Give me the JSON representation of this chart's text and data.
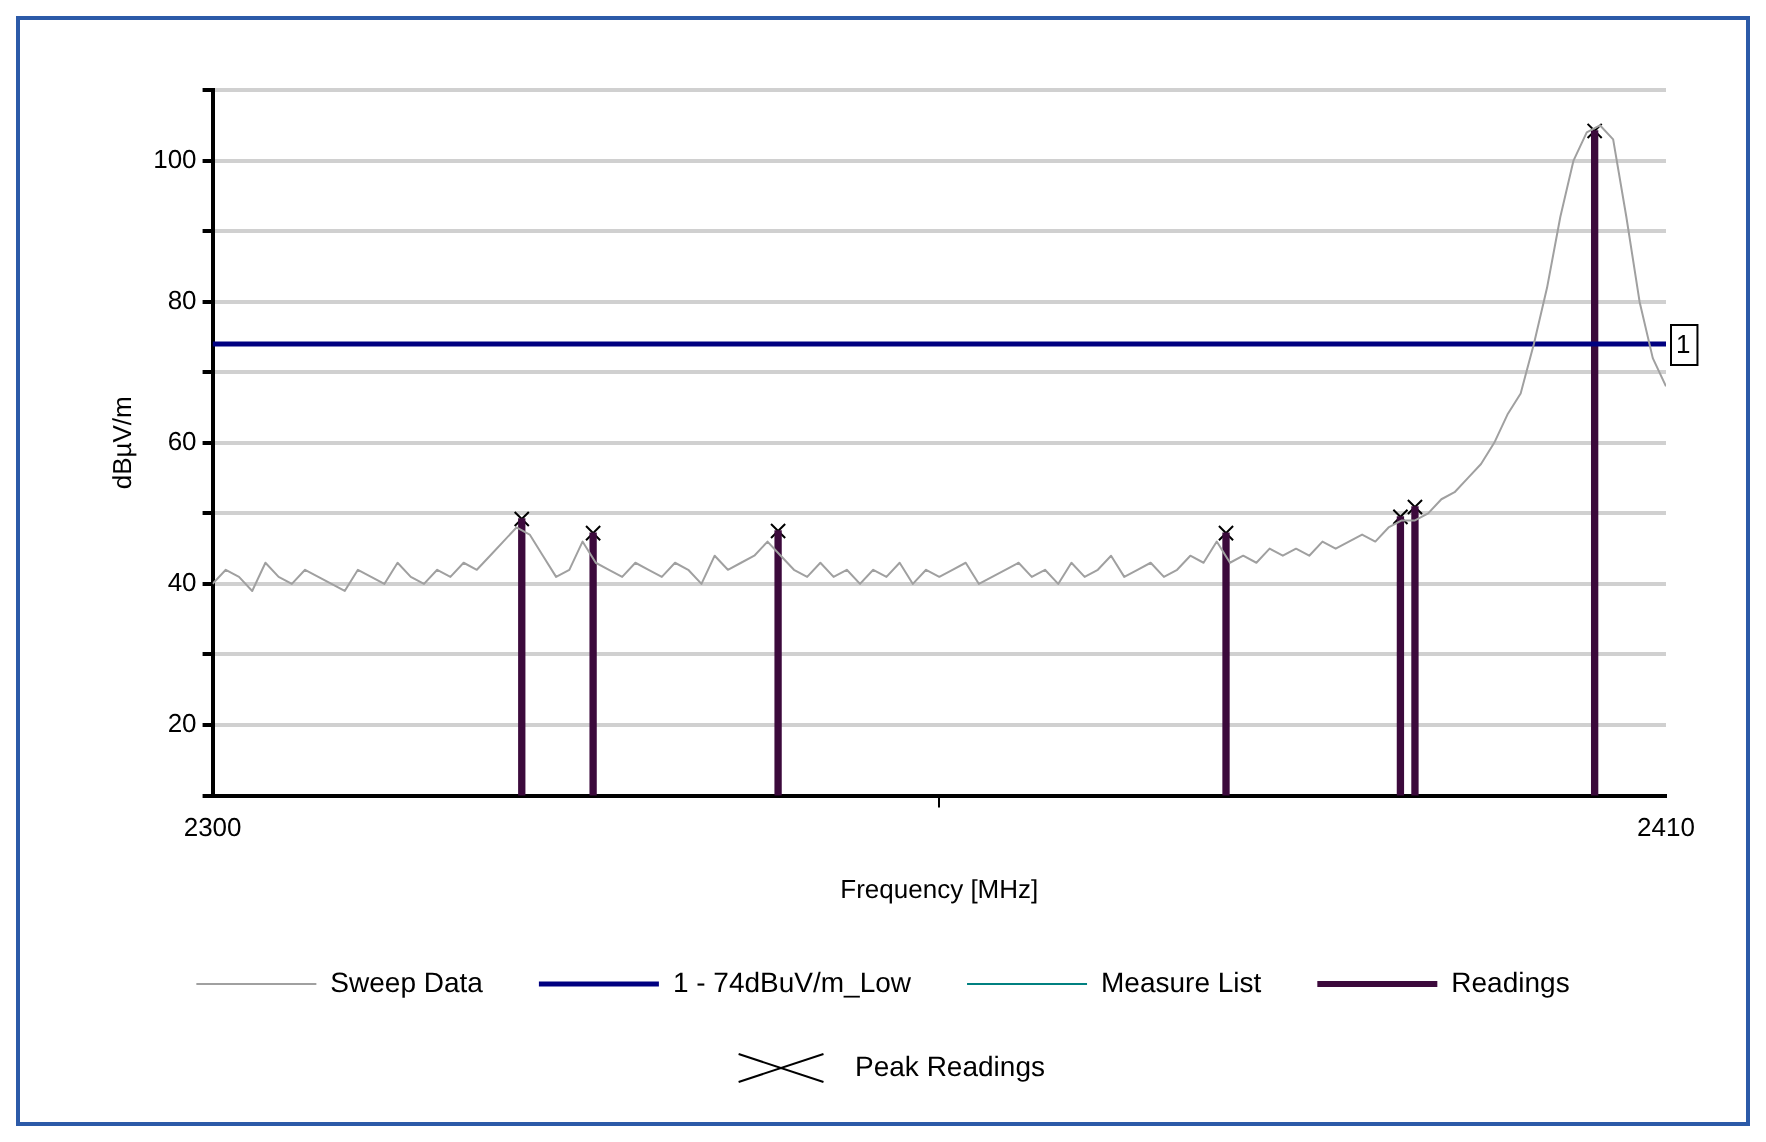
{
  "chart_data": {
    "type": "line",
    "xlabel": "Frequency [MHz]",
    "ylabel": "dBµV/m",
    "xlim": [
      2300,
      2410
    ],
    "xticks": [
      2300,
      2410
    ],
    "ylim": [
      10,
      110
    ],
    "yticks": [
      {
        "value": 10,
        "label": null
      },
      20,
      {
        "value": 30,
        "label": null
      },
      40,
      {
        "value": 50,
        "label": null
      },
      60,
      {
        "value": 70,
        "label": null
      },
      80,
      {
        "value": 90,
        "label": null
      },
      100,
      {
        "value": 110,
        "label": null
      }
    ],
    "grid": "y",
    "legend": "bottom",
    "annotations": [
      {
        "text": "1",
        "x": 2410,
        "y": 74
      }
    ],
    "series": [
      {
        "name": "Sweep Data",
        "color": "#a0a0a0",
        "x": [
          2300,
          2301,
          2302,
          2303,
          2304,
          2305,
          2306,
          2307,
          2308,
          2309,
          2310,
          2311,
          2312,
          2313,
          2314,
          2315,
          2316,
          2317,
          2318,
          2319,
          2320,
          2321,
          2322,
          2323,
          2324,
          2325,
          2326,
          2327,
          2328,
          2329,
          2330,
          2331,
          2332,
          2333,
          2334,
          2335,
          2336,
          2337,
          2338,
          2339,
          2340,
          2341,
          2342,
          2343,
          2344,
          2345,
          2346,
          2347,
          2348,
          2349,
          2350,
          2351,
          2352,
          2353,
          2354,
          2355,
          2356,
          2357,
          2358,
          2359,
          2360,
          2361,
          2362,
          2363,
          2364,
          2365,
          2366,
          2367,
          2368,
          2369,
          2370,
          2371,
          2372,
          2373,
          2374,
          2375,
          2376,
          2377,
          2378,
          2379,
          2380,
          2381,
          2382,
          2383,
          2384,
          2385,
          2386,
          2387,
          2388,
          2389,
          2390,
          2391,
          2392,
          2393,
          2394,
          2395,
          2396,
          2397,
          2398,
          2399,
          2400,
          2401,
          2402,
          2403,
          2404,
          2405,
          2406,
          2407,
          2408,
          2409,
          2410
        ],
        "values": [
          40,
          42,
          41,
          39,
          43,
          41,
          40,
          42,
          41,
          40,
          39,
          42,
          41,
          40,
          43,
          41,
          40,
          42,
          41,
          43,
          42,
          44,
          46,
          48,
          47,
          44,
          41,
          42,
          46,
          43,
          42,
          41,
          43,
          42,
          41,
          43,
          42,
          40,
          44,
          42,
          43,
          44,
          46,
          44,
          42,
          41,
          43,
          41,
          42,
          40,
          42,
          41,
          43,
          40,
          42,
          41,
          42,
          43,
          40,
          41,
          42,
          43,
          41,
          42,
          40,
          43,
          41,
          42,
          44,
          41,
          42,
          43,
          41,
          42,
          44,
          43,
          46,
          43,
          44,
          43,
          45,
          44,
          45,
          44,
          46,
          45,
          46,
          47,
          46,
          48,
          49,
          49,
          50,
          52,
          53,
          55,
          57,
          60,
          64,
          67,
          74,
          82,
          92,
          100,
          104,
          105,
          103,
          92,
          80,
          72,
          68
        ]
      },
      {
        "name": "1 - 74dBuV/m_Low",
        "type": "line",
        "color": "#000080",
        "x": [
          2300,
          2410
        ],
        "values": [
          74,
          74
        ]
      },
      {
        "name": "Measure List",
        "type": "line",
        "color": "#008080"
      },
      {
        "name": "Readings",
        "type": "bar",
        "color": "#3c0a3c",
        "x": [
          2323.4,
          2328.8,
          2342.8,
          2376.7,
          2389.9,
          2391.0,
          2404.6
        ],
        "values": [
          49.2,
          47.2,
          47.5,
          47.2,
          49.5,
          50.9,
          104.2
        ]
      },
      {
        "name": "Peak Readings",
        "type": "scatter",
        "marker": "cross",
        "color": "#000000",
        "x": [
          2323.4,
          2328.8,
          2342.8,
          2376.7,
          2389.9,
          2391.0,
          2404.6
        ],
        "values": [
          49.2,
          47.2,
          47.5,
          47.2,
          49.5,
          50.9,
          104.2
        ]
      }
    ]
  }
}
